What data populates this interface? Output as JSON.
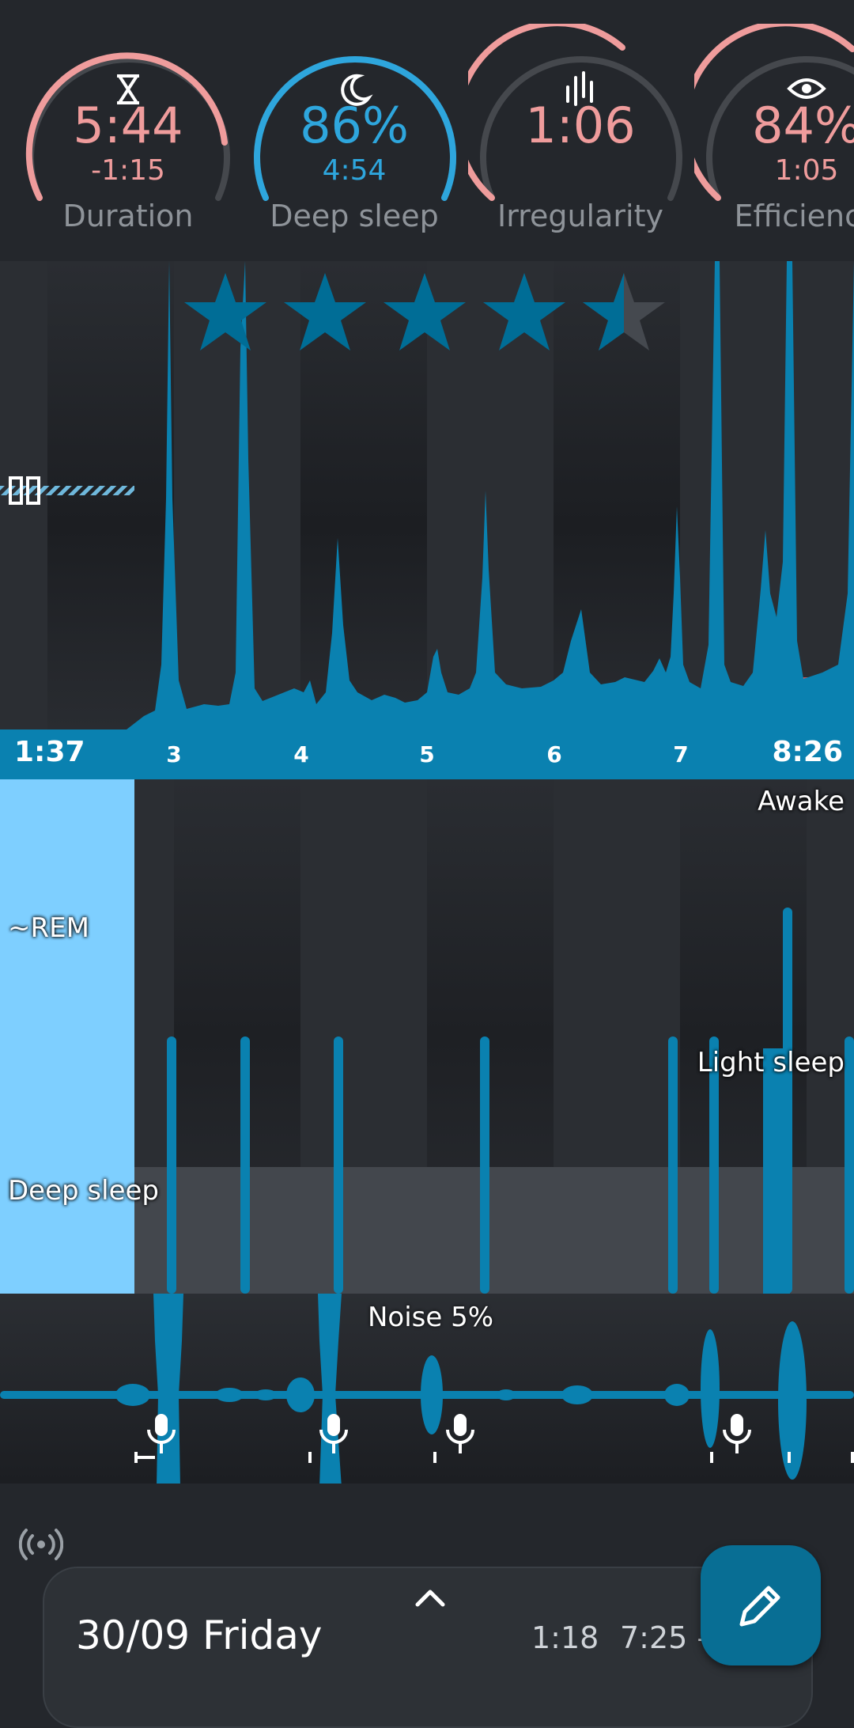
{
  "metrics": [
    {
      "icon": "hourglass-icon",
      "value": "5:44",
      "sub": "-1:15",
      "label": "Duration",
      "color": "#ef9c9c",
      "progress": 0.83
    },
    {
      "icon": "moon-icon",
      "value": "86%",
      "sub": "4:54",
      "label": "Deep sleep",
      "color": "#2ea6dd",
      "progress": 0.86
    },
    {
      "icon": "irregularity-icon",
      "value": "1:06",
      "sub": "",
      "label": "Irregularity",
      "color": "#ef9c9c",
      "progress": 0.55
    },
    {
      "icon": "eye-icon",
      "value": "84%",
      "sub": "1:05",
      "label": "Efficiency",
      "color": "#ef9c9c",
      "progress": 0.84
    }
  ],
  "rating": {
    "stars": 4.5,
    "max": 5
  },
  "graph": {
    "start_time": "1:37",
    "end_time": "8:26",
    "hour_ticks": [
      "3",
      "4",
      "5",
      "6",
      "7"
    ]
  },
  "hypnogram": {
    "labels": {
      "awake": "Awake",
      "rem": "~REM",
      "light": "Light sleep",
      "deep": "Deep sleep"
    }
  },
  "noise": {
    "label": "Noise 5%"
  },
  "bottom": {
    "date": "30/09 Friday",
    "start": "1:18",
    "end": "7:25 –"
  },
  "colors": {
    "accent": "#0a81b0",
    "light_accent": "#7ecfff",
    "warn": "#ef9c9c",
    "background": "#24272c"
  }
}
